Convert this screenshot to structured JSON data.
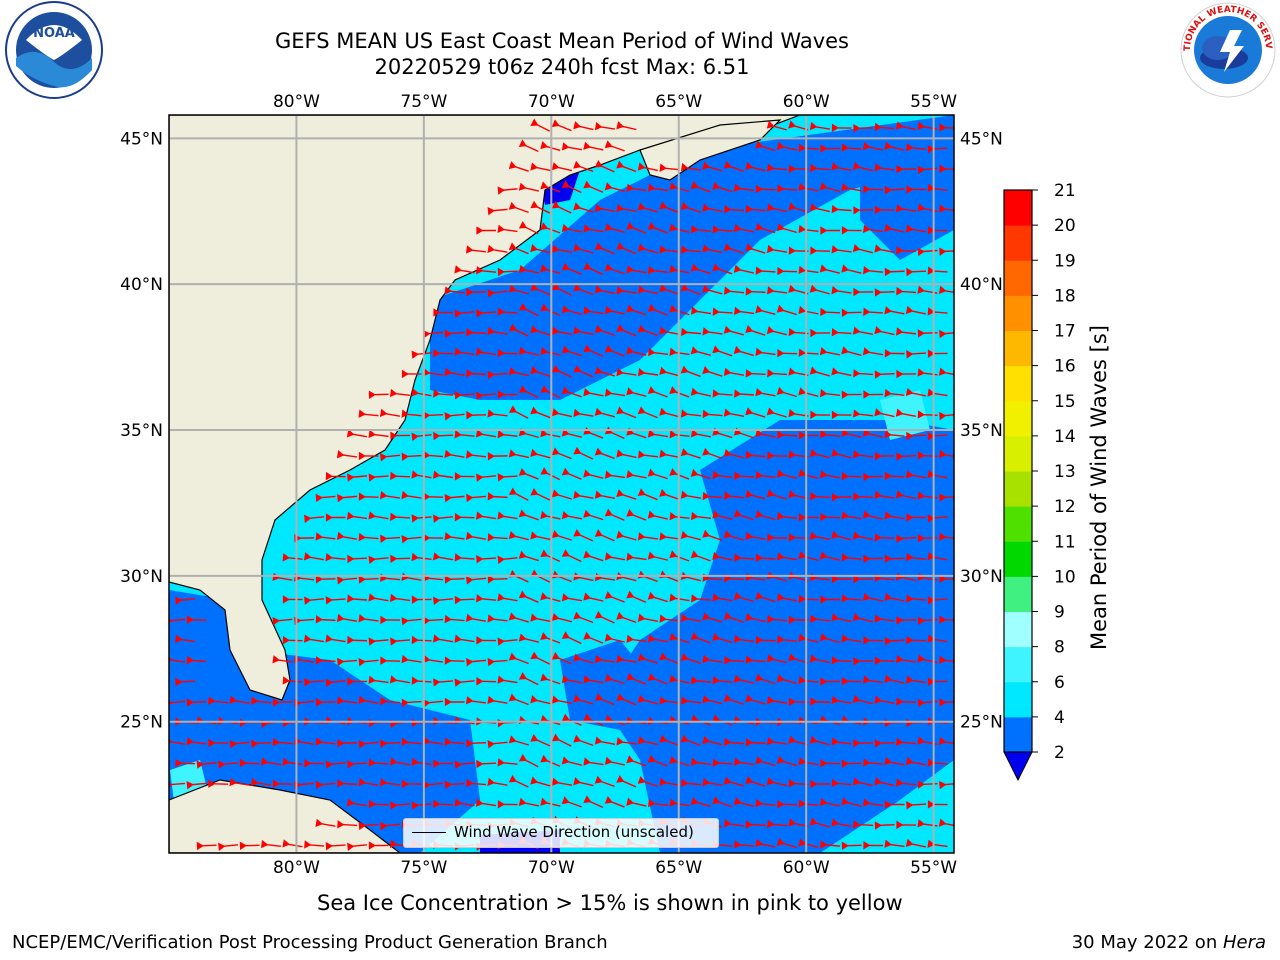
{
  "header": {
    "title_line1": "GEFS MEAN US East Coast Mean Period of Wind Waves",
    "title_line2": "20220529 t06z 240h fcst   Max: 6.51"
  },
  "logos": {
    "noaa": "NOAA",
    "noaa_ring": "NATIONAL OCEANIC AND ATMOSPHERIC ADMINISTRATION · U.S. DEPARTMENT OF COMMERCE",
    "nws_ring": "NATIONAL WEATHER SERVICE"
  },
  "map": {
    "lon_ticks": [
      "80°W",
      "75°W",
      "70°W",
      "65°W",
      "60°W",
      "55°W"
    ],
    "lat_ticks": [
      "45°N",
      "40°N",
      "35°N",
      "30°N",
      "25°N"
    ],
    "lon_values": [
      -80,
      -75,
      -70,
      -65,
      -60,
      -55
    ],
    "lat_values": [
      45,
      40,
      35,
      30,
      25
    ],
    "extent": {
      "lon_min": -85,
      "lon_max": -54.2,
      "lat_min": 20.5,
      "lat_max": 45.8
    },
    "legend_label": "Wind Wave Direction (unscaled)",
    "colors": {
      "land": "#efeedc",
      "coast": "#000000",
      "grid": "#b0b0b0",
      "arrow": "#ff0000"
    }
  },
  "colorbar": {
    "title": "Mean Period of Wind Waves [s]",
    "ticks": [
      "2",
      "4",
      "6",
      "8",
      "9",
      "10",
      "11",
      "12",
      "13",
      "14",
      "15",
      "16",
      "17",
      "18",
      "19",
      "20",
      "21"
    ],
    "colors": [
      "#0070ff",
      "#00e8ff",
      "#40f4ff",
      "#a0ffff",
      "#40f080",
      "#00d800",
      "#50e000",
      "#a8e000",
      "#d8f000",
      "#f0f000",
      "#ffe000",
      "#ffb800",
      "#ff9000",
      "#ff6800",
      "#ff3800",
      "#ff0000"
    ],
    "under_color": "#0000f0"
  },
  "notes": {
    "sea_ice": "Sea Ice Concentration > 15% is shown in pink to yellow"
  },
  "footer": {
    "left": "NCEP/EMC/Verification Post Processing Product Generation Branch",
    "right_date": "30 May 2022 on ",
    "right_machine": "Hera"
  }
}
